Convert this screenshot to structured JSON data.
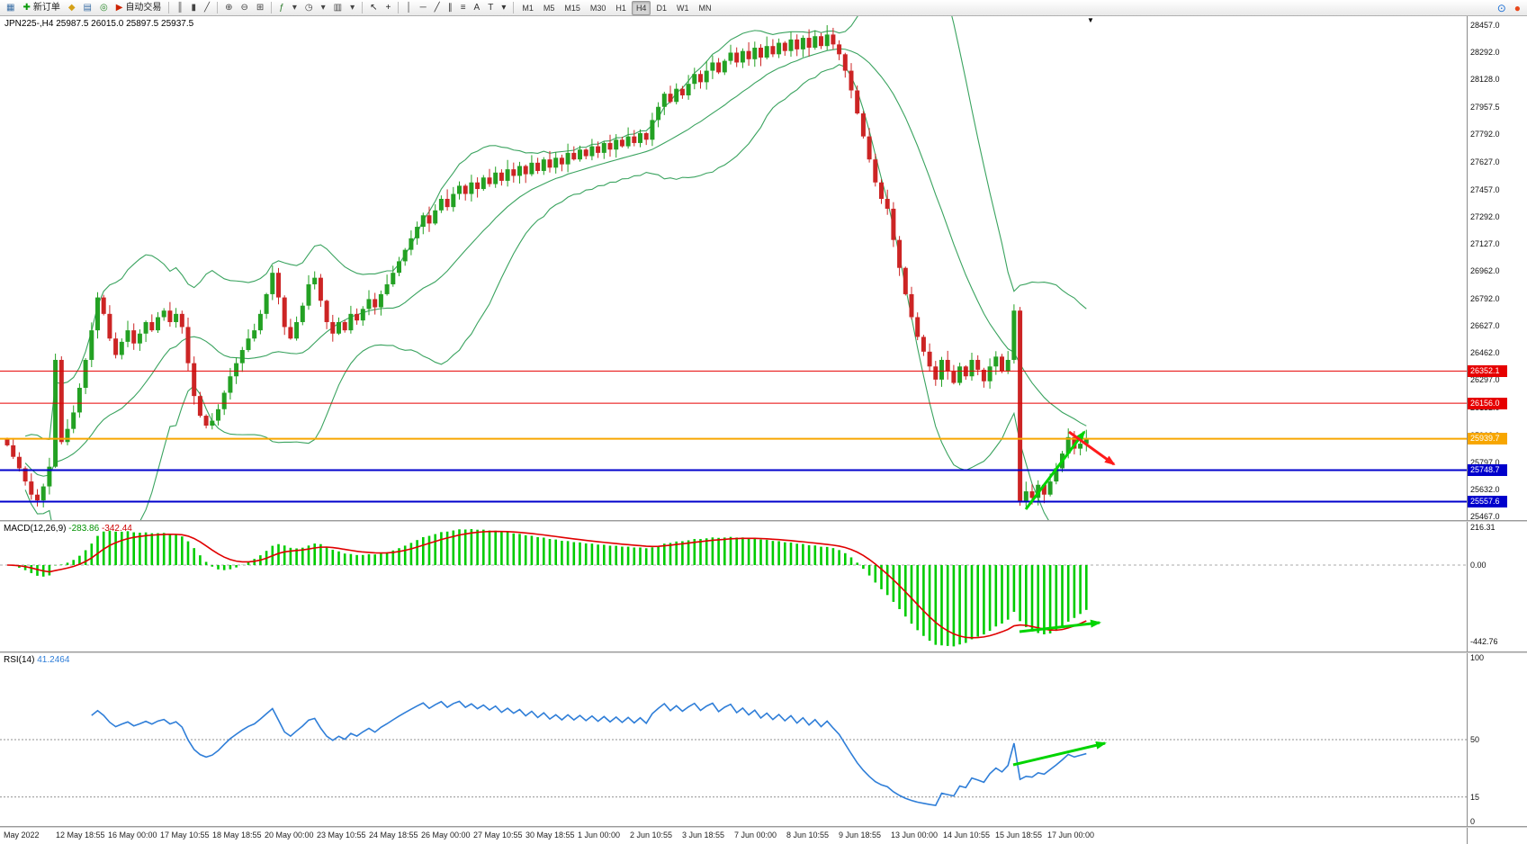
{
  "toolbar": {
    "groups": [
      {
        "name": "file-group",
        "items": [
          {
            "name": "new-chart-button",
            "glyph": "▦",
            "color": "#3a6ea5"
          },
          {
            "name": "new-order-button",
            "glyph": "✚",
            "color": "#0a9a0a",
            "label": "新订单"
          },
          {
            "name": "market-watch-button",
            "glyph": "◆",
            "color": "#d4a017"
          },
          {
            "name": "data-window-button",
            "glyph": "▤",
            "color": "#3a6ea5"
          },
          {
            "name": "navigator-button",
            "glyph": "◎",
            "color": "#2a8a2a"
          },
          {
            "name": "autotrading-button",
            "glyph": "▶",
            "color": "#cc2200",
            "label": "自动交易"
          }
        ]
      },
      {
        "name": "chart-mode-group",
        "items": [
          {
            "name": "bar-chart-button",
            "glyph": "║",
            "color": "#444"
          },
          {
            "name": "candlestick-button",
            "glyph": "▮",
            "color": "#444"
          },
          {
            "name": "line-chart-button",
            "glyph": "╱",
            "color": "#444"
          }
        ]
      },
      {
        "name": "zoom-group",
        "items": [
          {
            "name": "zoom-in-button",
            "glyph": "⊕",
            "color": "#444"
          },
          {
            "name": "zoom-out-button",
            "glyph": "⊖",
            "color": "#444"
          },
          {
            "name": "tile-windows-button",
            "glyph": "⊞",
            "color": "#444"
          }
        ]
      },
      {
        "name": "insert-group",
        "items": [
          {
            "name": "indicators-button",
            "glyph": "ƒ",
            "color": "#2a7a2a"
          },
          {
            "name": "indicators-dropdown",
            "glyph": "▾",
            "color": "#444"
          },
          {
            "name": "periods-dropdown-button",
            "glyph": "◷",
            "color": "#444"
          },
          {
            "name": "periods-dropdown",
            "glyph": "▾",
            "color": "#444"
          },
          {
            "name": "templates-button",
            "glyph": "▥",
            "color": "#444"
          },
          {
            "name": "templates-dropdown",
            "glyph": "▾",
            "color": "#444"
          }
        ]
      },
      {
        "name": "cursor-group",
        "items": [
          {
            "name": "cursor-button",
            "glyph": "↖",
            "color": "#222"
          },
          {
            "name": "crosshair-button",
            "glyph": "+",
            "color": "#222"
          }
        ]
      },
      {
        "name": "draw-group",
        "items": [
          {
            "name": "vline-button",
            "glyph": "│",
            "color": "#333"
          },
          {
            "name": "hline-button",
            "glyph": "─",
            "color": "#333"
          },
          {
            "name": "trendline-button",
            "glyph": "╱",
            "color": "#333"
          },
          {
            "name": "channel-button",
            "glyph": "∥",
            "color": "#333"
          },
          {
            "name": "fibonacci-button",
            "glyph": "≡",
            "color": "#333"
          },
          {
            "name": "text-button",
            "glyph": "A",
            "color": "#333"
          },
          {
            "name": "label-button",
            "glyph": "T",
            "color": "#333"
          },
          {
            "name": "shapes-dropdown",
            "glyph": "▾",
            "color": "#333"
          }
        ]
      }
    ],
    "timeframes": {
      "items": [
        "M1",
        "M5",
        "M15",
        "M30",
        "H1",
        "H4",
        "D1",
        "W1",
        "MN"
      ],
      "active": "H4"
    },
    "overlay_icons": [
      {
        "name": "magnifier-overlay-icon",
        "glyph": "⊙",
        "color": "#1c6fd4"
      },
      {
        "name": "record-overlay-icon",
        "glyph": "●",
        "color": "#e8481c"
      }
    ]
  },
  "chart": {
    "symbol_line": "JPN225-,H4  25987.5 26015.0 25897.5 25937.5",
    "shift_marker": "▼",
    "price_axis_labels": [
      "28457.0",
      "28292.0",
      "28128.0",
      "27957.5",
      "27792.0",
      "27627.0",
      "27457.0",
      "27292.0",
      "27127.0",
      "26962.0",
      "26792.0",
      "26627.0",
      "26462.0",
      "26297.0",
      "26132.0",
      "25962.0",
      "25797.0",
      "25632.0",
      "25467.0"
    ],
    "hlines": [
      {
        "value": "26352.1",
        "price": 26352.1,
        "color": "#e60000",
        "width": 1
      },
      {
        "value": "26156.0",
        "price": 26156.0,
        "color": "#e60000",
        "width": 1
      },
      {
        "value": "25939.7",
        "price": 25939.7,
        "color": "#f7a600",
        "width": 2
      },
      {
        "value": "25748.7",
        "price": 25748.7,
        "color": "#0000cc",
        "width": 2
      },
      {
        "value": "25557.6",
        "price": 25557.6,
        "color": "#0000cc",
        "width": 2
      }
    ]
  },
  "macd_panel": {
    "label": "MACD(12,26,9)",
    "main_value": "-283.86",
    "signal_value": "-342.44"
  },
  "rsi_panel": {
    "label": "RSI(14)",
    "value": "41.2464"
  },
  "chart_data": {
    "type": "candlestick",
    "symbol": "JPN225-",
    "timeframe": "H4",
    "ohlc_current": {
      "open": "25987.5",
      "high": "26015.0",
      "low": "25897.5",
      "close": "25937.5"
    },
    "price_range": [
      25467,
      28457
    ],
    "overlays": [
      {
        "name": "Bollinger Bands",
        "period": 20,
        "deviation": 2,
        "color": "#3aa35f"
      }
    ],
    "closes": [
      25900,
      25830,
      25760,
      25680,
      25600,
      25565,
      25650,
      25770,
      26420,
      25920,
      26000,
      26100,
      26250,
      26420,
      26600,
      26800,
      26700,
      26550,
      26450,
      26530,
      26600,
      26520,
      26580,
      26650,
      26600,
      26680,
      26720,
      26650,
      26700,
      26620,
      26400,
      26200,
      26080,
      26020,
      26050,
      26120,
      26220,
      26320,
      26400,
      26480,
      26550,
      26600,
      26700,
      26820,
      26950,
      26800,
      26620,
      26550,
      26650,
      26750,
      26880,
      26920,
      26780,
      26650,
      26580,
      26650,
      26600,
      26700,
      26660,
      26730,
      26790,
      26740,
      26820,
      26880,
      26950,
      27020,
      27090,
      27160,
      27230,
      27300,
      27250,
      27330,
      27400,
      27350,
      27430,
      27480,
      27430,
      27500,
      27460,
      27530,
      27490,
      27560,
      27510,
      27580,
      27540,
      27600,
      27550,
      27620,
      27570,
      27640,
      27590,
      27650,
      27610,
      27680,
      27640,
      27700,
      27660,
      27720,
      27680,
      27740,
      27700,
      27760,
      27720,
      27780,
      27740,
      27800,
      27760,
      27880,
      27960,
      28040,
      27990,
      28070,
      28030,
      28100,
      28160,
      28110,
      28180,
      28230,
      28170,
      28240,
      28290,
      28230,
      28300,
      28250,
      28320,
      28260,
      28330,
      28280,
      28350,
      28300,
      28370,
      28310,
      28380,
      28320,
      28390,
      28330,
      28400,
      28340,
      28280,
      28180,
      28060,
      27920,
      27780,
      27640,
      27500,
      27400,
      27340,
      27150,
      26980,
      26820,
      26680,
      26560,
      26470,
      26380,
      26300,
      26420,
      26350,
      26280,
      26380,
      26320,
      26420,
      26360,
      26290,
      26380,
      26440,
      26350,
      26420,
      26720,
      25560,
      25620,
      25580,
      25660,
      25600,
      25680,
      25760,
      25850,
      25950,
      25880,
      25910,
      25937
    ],
    "x_axis_labels": [
      "May 2022",
      "12 May 18:55",
      "16 May 00:00",
      "17 May 10:55",
      "18 May 18:55",
      "20 May 00:00",
      "23 May 10:55",
      "24 May 18:55",
      "26 May 00:00",
      "27 May 10:55",
      "30 May 18:55",
      "1 Jun 00:00",
      "2 Jun 10:55",
      "3 Jun 18:55",
      "7 Jun 00:00",
      "8 Jun 10:55",
      "9 Jun 18:55",
      "13 Jun 00:00",
      "14 Jun 10:55",
      "15 Jun 18:55",
      "17 Jun 00:00"
    ],
    "indicators": [
      {
        "name": "MACD",
        "params": "12,26,9",
        "value_main": -283.86,
        "value_signal": -342.44,
        "axis_labels": [
          "216.31",
          "0.00",
          "-442.76"
        ],
        "range": [
          -500,
          250
        ],
        "histogram_color": "#00cc00",
        "signal_color": "#e00000"
      },
      {
        "name": "RSI",
        "params": "14",
        "value": 41.2464,
        "axis_labels": [
          "100",
          "50",
          "15",
          "0"
        ],
        "levels": [
          50,
          15
        ],
        "range": [
          0,
          100
        ],
        "line_color": "#2f7ed8"
      }
    ],
    "annotations": [
      {
        "panel": "main",
        "type": "arrow",
        "color": "#00d400",
        "from": [
          1140,
          548
        ],
        "to": [
          1205,
          462
        ]
      },
      {
        "panel": "main",
        "type": "arrow",
        "color": "#ff1a1a",
        "from": [
          1188,
          462
        ],
        "to": [
          1238,
          498
        ]
      },
      {
        "panel": "macd",
        "type": "arrow",
        "color": "#00d400",
        "from": [
          1133,
          122
        ],
        "to": [
          1222,
          112
        ]
      },
      {
        "panel": "rsi",
        "type": "arrow",
        "color": "#00d400",
        "from": [
          1126,
          124
        ],
        "to": [
          1228,
          100
        ]
      }
    ],
    "candle_colors": {
      "bull": "#23a123",
      "bear": "#cc2424"
    }
  }
}
